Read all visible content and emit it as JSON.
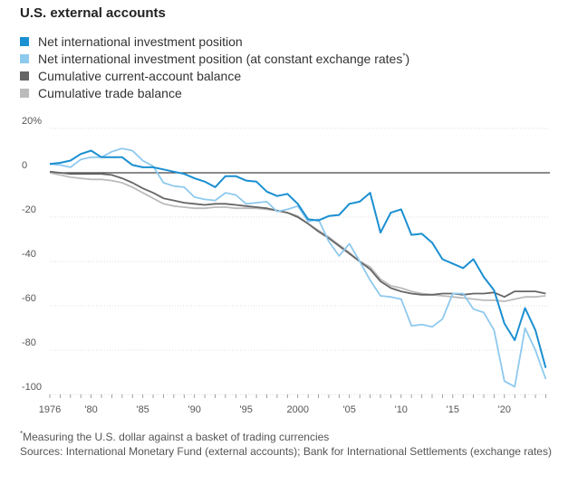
{
  "chart_data": {
    "type": "line",
    "title": "U.S. external accounts",
    "ylim": [
      -100,
      20
    ],
    "xlim": [
      1976,
      2024
    ],
    "y_ticks": [
      {
        "value": 20,
        "label": "20%"
      },
      {
        "value": 0,
        "label": "0"
      },
      {
        "value": -20,
        "label": "-20"
      },
      {
        "value": -40,
        "label": "-40"
      },
      {
        "value": -60,
        "label": "-60"
      },
      {
        "value": -80,
        "label": "-80"
      },
      {
        "value": -100,
        "label": "-100"
      }
    ],
    "x_ticks": [
      {
        "value": 1976,
        "label": "1976"
      },
      {
        "value": 1980,
        "label": "'80"
      },
      {
        "value": 1985,
        "label": "'85"
      },
      {
        "value": 1990,
        "label": "'90"
      },
      {
        "value": 1995,
        "label": "'95"
      },
      {
        "value": 2000,
        "label": "2000"
      },
      {
        "value": 2005,
        "label": "'05"
      },
      {
        "value": 2010,
        "label": "'10"
      },
      {
        "value": 2015,
        "label": "'15"
      },
      {
        "value": 2020,
        "label": "'20"
      }
    ],
    "grid": true,
    "legend_position": "top-left",
    "series": [
      {
        "name": "Net international investment position",
        "color": "#1a8fd1",
        "x": [
          1976,
          1977,
          1978,
          1979,
          1980,
          1981,
          1982,
          1983,
          1984,
          1985,
          1986,
          1987,
          1988,
          1989,
          1990,
          1991,
          1992,
          1993,
          1994,
          1995,
          1996,
          1997,
          1998,
          1999,
          2000,
          2001,
          2002,
          2003,
          2004,
          2005,
          2006,
          2007,
          2008,
          2009,
          2010,
          2011,
          2012,
          2013,
          2014,
          2015,
          2016,
          2017,
          2018,
          2019,
          2020,
          2021,
          2022,
          2023,
          2024
        ],
        "y": [
          4,
          4.5,
          5.5,
          8.5,
          10,
          7,
          7,
          7,
          3.5,
          2.5,
          2.5,
          1.5,
          0.5,
          -0.5,
          -2.5,
          -4,
          -6.5,
          -1.5,
          -1.5,
          -3.5,
          -4,
          -8.5,
          -10.5,
          -9.5,
          -14,
          -21,
          -21.5,
          -19.5,
          -19,
          -14,
          -13,
          -9,
          -27,
          -18,
          -16.5,
          -28,
          -27.5,
          -31.5,
          -39,
          -41,
          -43,
          -39,
          -47,
          -53,
          -68,
          -75.5,
          -61,
          -71,
          -88
        ]
      },
      {
        "name": "Net international investment position (at constant exchange rates)",
        "color": "#8ec9ee",
        "x": [
          1976,
          1977,
          1978,
          1979,
          1980,
          1981,
          1982,
          1983,
          1984,
          1985,
          1986,
          1987,
          1988,
          1989,
          1990,
          1991,
          1992,
          1993,
          1994,
          1995,
          1996,
          1997,
          1998,
          1999,
          2000,
          2001,
          2002,
          2003,
          2004,
          2005,
          2006,
          2007,
          2008,
          2009,
          2010,
          2011,
          2012,
          2013,
          2014,
          2015,
          2016,
          2017,
          2018,
          2019,
          2020,
          2021,
          2022,
          2023,
          2024
        ],
        "y": [
          4,
          3.5,
          2.5,
          6,
          7,
          7,
          9.5,
          11,
          10,
          5.5,
          3,
          -4.5,
          -6,
          -6.5,
          -11,
          -12,
          -12.5,
          -9,
          -10,
          -14,
          -13.5,
          -13,
          -17.5,
          -16.5,
          -15,
          -22,
          -21,
          -31,
          -37.5,
          -32,
          -40,
          -48.5,
          -55.5,
          -56,
          -57,
          -69,
          -68.5,
          -69.5,
          -66,
          -54.5,
          -54.5,
          -61.5,
          -63,
          -71,
          -94,
          -96.5,
          -70,
          -80,
          -93
        ]
      },
      {
        "name": "Cumulative current-account balance",
        "color": "#666666",
        "x": [
          1976,
          1977,
          1978,
          1979,
          1980,
          1981,
          1982,
          1983,
          1984,
          1985,
          1986,
          1987,
          1988,
          1989,
          1990,
          1991,
          1992,
          1993,
          1994,
          1995,
          1996,
          1997,
          1998,
          1999,
          2000,
          2001,
          2002,
          2003,
          2004,
          2005,
          2006,
          2007,
          2008,
          2009,
          2010,
          2011,
          2012,
          2013,
          2014,
          2015,
          2016,
          2017,
          2018,
          2019,
          2020,
          2021,
          2022,
          2023,
          2024
        ],
        "y": [
          0.5,
          0,
          -0.5,
          -0.5,
          -0.5,
          -0.5,
          -1,
          -2.5,
          -4.5,
          -7,
          -9,
          -11.5,
          -12.5,
          -13.5,
          -14,
          -14.5,
          -14,
          -14,
          -14.5,
          -15,
          -15.5,
          -16,
          -17,
          -18,
          -20,
          -23,
          -26.5,
          -29.5,
          -33,
          -36.5,
          -40,
          -43.5,
          -49,
          -52,
          -53.5,
          -54.5,
          -55,
          -55,
          -54.5,
          -54.5,
          -55,
          -54.5,
          -54.5,
          -54,
          -56,
          -53.5,
          -53.5,
          -53.5,
          -54.5
        ]
      },
      {
        "name": "Cumulative trade balance",
        "color": "#bbbbbb",
        "x": [
          1976,
          1977,
          1978,
          1979,
          1980,
          1981,
          1982,
          1983,
          1984,
          1985,
          1986,
          1987,
          1988,
          1989,
          1990,
          1991,
          1992,
          1993,
          1994,
          1995,
          1996,
          1997,
          1998,
          1999,
          2000,
          2001,
          2002,
          2003,
          2004,
          2005,
          2006,
          2007,
          2008,
          2009,
          2010,
          2011,
          2012,
          2013,
          2014,
          2015,
          2016,
          2017,
          2018,
          2019,
          2020,
          2021,
          2022,
          2023,
          2024
        ],
        "y": [
          0,
          -1,
          -2,
          -2.5,
          -3,
          -3,
          -3.5,
          -4.5,
          -6.5,
          -9,
          -11.5,
          -14,
          -15,
          -15.5,
          -16,
          -16,
          -15.5,
          -15.5,
          -16,
          -16,
          -16,
          -16.5,
          -17,
          -18,
          -19.5,
          -23,
          -26,
          -29,
          -32.5,
          -36,
          -40,
          -42.5,
          -48,
          -51,
          -52,
          -53.5,
          -54.5,
          -55,
          -55.5,
          -56,
          -56.5,
          -57,
          -57.5,
          -57.5,
          -58,
          -57,
          -56,
          -56,
          -55.5
        ]
      }
    ]
  },
  "legend": [
    {
      "label": "Net international investment position",
      "sup": "",
      "color": "#1a8fd1"
    },
    {
      "label": "Net international investment position (at constant exchange rates",
      "sup": "*",
      "close": ")",
      "color": "#8ec9ee"
    },
    {
      "label": "Cumulative current-account balance",
      "sup": "",
      "color": "#666666"
    },
    {
      "label": "Cumulative trade balance",
      "sup": "",
      "color": "#bbbbbb"
    }
  ],
  "footnote": {
    "marker": "*",
    "note": "Measuring the U.S. dollar against a basket of trading currencies",
    "sources": "Sources: International Monetary Fund (external accounts); Bank for International Settlements (exchange rates)"
  }
}
